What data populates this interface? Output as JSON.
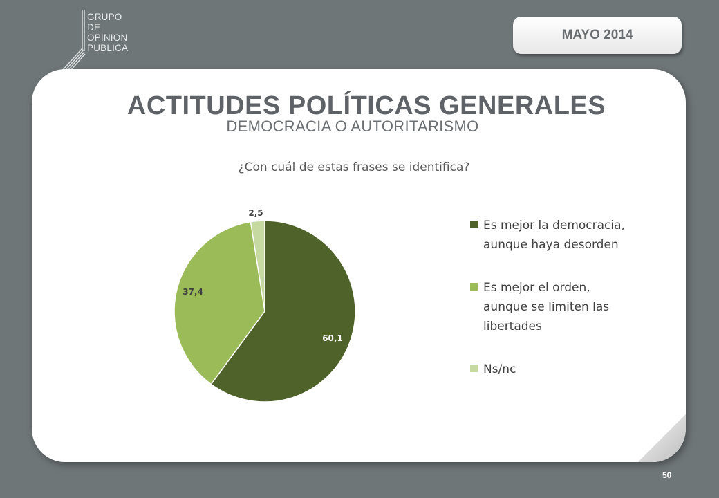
{
  "header": {
    "logo_lines": [
      "GRUPO",
      "DE",
      "OPINION",
      "PUBLICA"
    ],
    "date": "MAYO 2014"
  },
  "slide": {
    "title": "ACTITUDES POLÍTICAS GENERALES",
    "subtitle": "DEMOCRACIA O AUTORITARISMO",
    "page_number": "50"
  },
  "chart_data": {
    "type": "pie",
    "title": "¿Con cuál de estas frases se identifica?",
    "slices": [
      {
        "label": "Es mejor la democracia, aunque haya desorden",
        "legend_text": "Es mejor la democracia,\naunque haya desorden",
        "value": 60.1,
        "value_label": "60,1",
        "color": "#4e6229"
      },
      {
        "label": "Es mejor el orden, aunque se limiten las libertades",
        "legend_text": "Es mejor el orden,\naunque se limiten las\nlibertades",
        "value": 37.4,
        "value_label": "37,4",
        "color": "#9bbb59"
      },
      {
        "label": "Ns/nc",
        "legend_text": "Ns/nc",
        "value": 2.5,
        "value_label": "2,5",
        "color": "#c6d9a1"
      }
    ],
    "legend_position": "right"
  }
}
